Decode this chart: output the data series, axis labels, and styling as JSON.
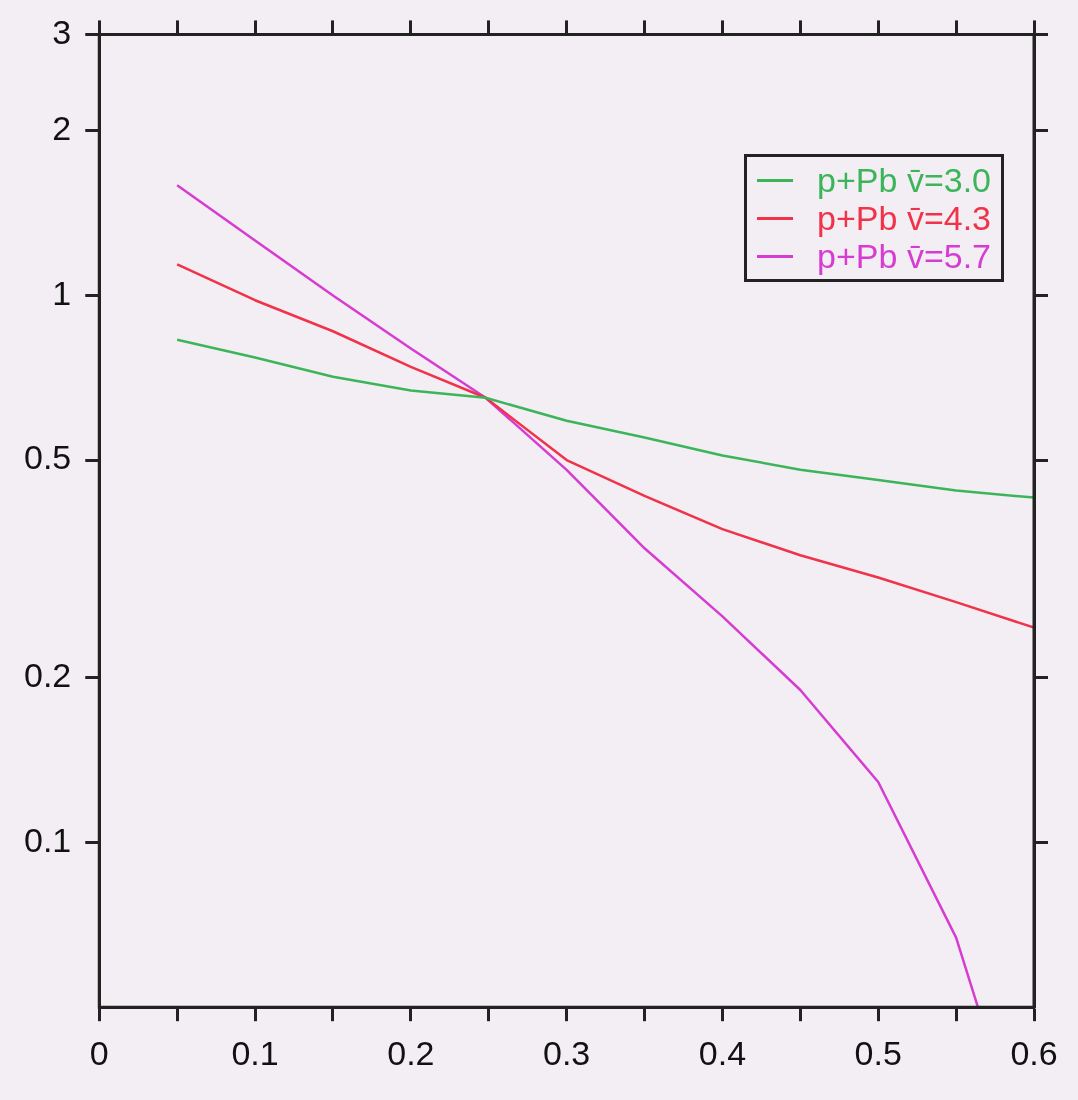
{
  "chart_data": {
    "type": "line",
    "xlim": [
      0,
      0.6
    ],
    "xticks": [
      0,
      {
        "value": 0.05,
        "label": null
      },
      0.1,
      {
        "value": 0.15,
        "label": null
      },
      0.2,
      {
        "value": 0.25,
        "label": null
      },
      0.3,
      {
        "value": 0.35,
        "label": null
      },
      0.4,
      {
        "value": 0.45,
        "label": null
      },
      0.5,
      {
        "value": 0.55,
        "label": null
      },
      0.6
    ],
    "ylim": [
      0.05,
      3
    ],
    "yticks": [
      0.1,
      0.2,
      0.5,
      1,
      2,
      3
    ],
    "log": "y",
    "grid": false,
    "legend": "top right",
    "marker": "none",
    "line_style": "solid",
    "series": [
      {
        "name": "p+Pb v̄=3.0",
        "color": "#3cb45a",
        "x": [
          0.05,
          0.1,
          0.15,
          0.2,
          0.248,
          0.3,
          0.35,
          0.4,
          0.45,
          0.5,
          0.55,
          0.6
        ],
        "values": [
          0.83,
          0.77,
          0.71,
          0.67,
          0.65,
          0.59,
          0.55,
          0.51,
          0.48,
          0.46,
          0.44,
          0.427
        ]
      },
      {
        "name": "p+Pb v̄=4.3",
        "color": "#f0324a",
        "x": [
          0.05,
          0.1,
          0.15,
          0.2,
          0.248,
          0.3,
          0.35,
          0.4,
          0.45,
          0.5,
          0.55,
          0.6
        ],
        "values": [
          1.14,
          0.98,
          0.86,
          0.74,
          0.65,
          0.5,
          0.43,
          0.374,
          0.335,
          0.305,
          0.275,
          0.247
        ]
      },
      {
        "name": "p+Pb v̄=5.7",
        "color": "#d63cd2",
        "x": [
          0.05,
          0.1,
          0.15,
          0.2,
          0.248,
          0.3,
          0.35,
          0.4,
          0.45,
          0.5,
          0.55,
          0.564
        ],
        "values": [
          1.59,
          1.26,
          1.0,
          0.8,
          0.65,
          0.48,
          0.345,
          0.259,
          0.19,
          0.129,
          0.067,
          0.05
        ]
      }
    ]
  }
}
